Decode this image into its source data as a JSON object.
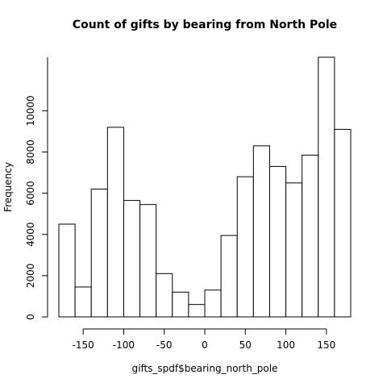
{
  "chart_data": {
    "type": "bar",
    "subtype": "histogram",
    "title": "Count of gifts by bearing from North Pole",
    "xlabel": "gifts_spdf$bearing_north_pole",
    "ylabel": "Frequency",
    "bin_edges": [
      -180,
      -160,
      -140,
      -120,
      -100,
      -80,
      -60,
      -40,
      -20,
      0,
      20,
      40,
      60,
      80,
      100,
      120,
      140,
      160,
      180
    ],
    "values": [
      4500,
      1450,
      6200,
      9200,
      5650,
      5450,
      2100,
      1200,
      600,
      1300,
      3950,
      6800,
      8300,
      7300,
      6500,
      7850,
      12600,
      9100
    ],
    "xlim": [
      -180,
      180
    ],
    "ylim": [
      0,
      12600
    ],
    "x_ticks": [
      -150,
      -100,
      -50,
      0,
      50,
      100,
      150
    ],
    "x_tick_labels": [
      "-150",
      "-100",
      "-50",
      "0",
      "50",
      "100",
      "150"
    ],
    "y_ticks": [
      0,
      2000,
      4000,
      6000,
      8000,
      10000
    ],
    "y_tick_labels": [
      "0",
      "2000",
      "4000",
      "6000",
      "8000",
      "10000"
    ],
    "grid": false,
    "legend": "none"
  }
}
